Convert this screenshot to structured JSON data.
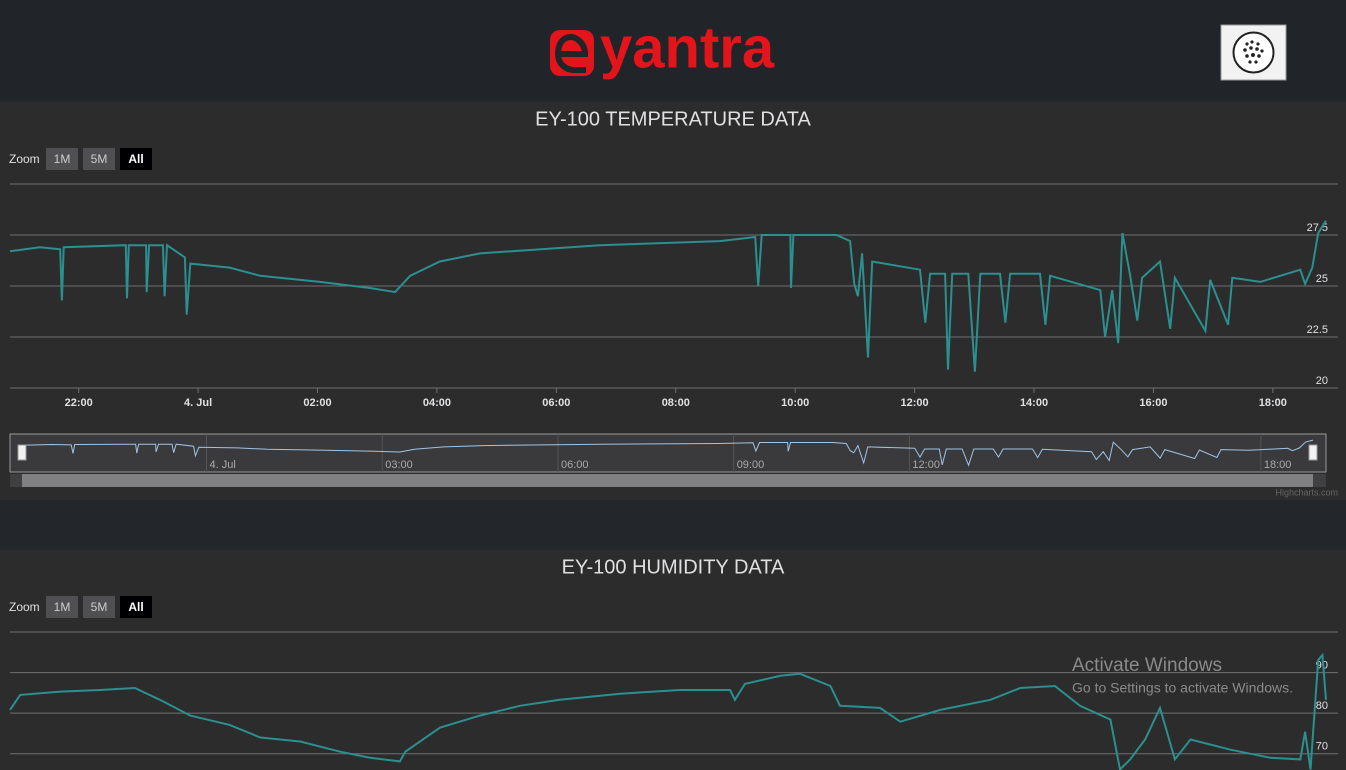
{
  "header": {
    "logo_text": "yantra"
  },
  "chart_data": [
    {
      "type": "line",
      "title": "EY-100 TEMPERATURE DATA",
      "range_selector": {
        "label": "Zoom",
        "buttons": [
          "1M",
          "5M",
          "All"
        ],
        "selected": 2
      },
      "series": [
        {
          "color": "#2b908f",
          "x": [
            20.85,
            21.35,
            21.69,
            21.72,
            21.75,
            22.79,
            22.81,
            22.84,
            23.13,
            23.14,
            23.18,
            23.41,
            23.44,
            23.48,
            23.78,
            23.81,
            23.87,
            24.53,
            25.04,
            26.04,
            26.88,
            27.3,
            27.55,
            28.05,
            28.72,
            30.73,
            32.74,
            33.33,
            33.38,
            33.44,
            33.92,
            33.93,
            33.97,
            34.69,
            34.92,
            34.99,
            35.05,
            35.12,
            35.22,
            35.29,
            36.09,
            36.18,
            36.26,
            36.51,
            36.56,
            36.63,
            36.9,
            37.01,
            37.1,
            37.43,
            37.52,
            37.6,
            38.1,
            38.19,
            38.27,
            39.11,
            39.19,
            39.31,
            39.41,
            39.48,
            39.61,
            39.73,
            39.81,
            40.11,
            40.28,
            40.36,
            40.87,
            40.95,
            41.25,
            41.32,
            41.79,
            42.46,
            42.54,
            42.66,
            42.76,
            42.89
          ],
          "values": [
            26.7,
            26.9,
            26.8,
            24.3,
            26.9,
            27.0,
            24.4,
            27.0,
            27.0,
            24.7,
            27.0,
            27.0,
            24.5,
            27.0,
            26.4,
            23.6,
            26.1,
            25.9,
            25.5,
            25.2,
            24.9,
            24.7,
            25.5,
            26.2,
            26.6,
            27.0,
            27.2,
            27.4,
            25.0,
            27.5,
            27.5,
            24.9,
            27.5,
            27.5,
            27.2,
            25.1,
            24.5,
            26.6,
            21.5,
            26.2,
            25.8,
            23.2,
            25.6,
            25.6,
            20.9,
            25.6,
            25.6,
            20.8,
            25.6,
            25.6,
            23.2,
            25.6,
            25.6,
            23.1,
            25.5,
            24.8,
            22.5,
            24.8,
            22.2,
            27.6,
            25.5,
            23.3,
            25.4,
            26.2,
            22.9,
            25.4,
            22.8,
            25.3,
            23.1,
            25.4,
            25.2,
            25.8,
            25.1,
            25.9,
            27.6,
            28.2
          ]
        }
      ],
      "xlim": [
        20.85,
        42.89
      ],
      "xticks": [
        {
          "value": 22,
          "label": "22:00"
        },
        {
          "value": 24,
          "label": "4. Jul"
        },
        {
          "value": 26,
          "label": "02:00"
        },
        {
          "value": 28,
          "label": "04:00"
        },
        {
          "value": 30,
          "label": "06:00"
        },
        {
          "value": 32,
          "label": "08:00"
        },
        {
          "value": 34,
          "label": "10:00"
        },
        {
          "value": 36,
          "label": "12:00"
        },
        {
          "value": 38,
          "label": "14:00"
        },
        {
          "value": 40,
          "label": "16:00"
        },
        {
          "value": 42,
          "label": "18:00"
        }
      ],
      "ylim": [
        20,
        30
      ],
      "yticks": [
        20,
        22.5,
        25,
        27.5
      ],
      "grid": true,
      "navigator_xticks": [
        {
          "value": 24,
          "label": "4. Jul"
        },
        {
          "value": 27,
          "label": "03:00"
        },
        {
          "value": 30,
          "label": "06:00"
        },
        {
          "value": 33,
          "label": "09:00"
        },
        {
          "value": 36,
          "label": "12:00"
        },
        {
          "value": 42,
          "label": "18:00"
        }
      ],
      "credits": "Highcharts.com"
    },
    {
      "type": "line",
      "title": "EY-100 HUMIDITY DATA",
      "range_selector": {
        "label": "Zoom",
        "buttons": [
          "1M",
          "5M",
          "All"
        ],
        "selected": 2
      },
      "series": [
        {
          "color": "#2b908f",
          "x": [
            20.85,
            21.02,
            21.69,
            22.36,
            22.94,
            23.36,
            23.87,
            24.53,
            25.04,
            25.71,
            26.38,
            26.88,
            27.38,
            27.47,
            28.05,
            28.72,
            29.39,
            30.06,
            31.07,
            32.07,
            32.91,
            32.99,
            33.16,
            33.75,
            34.08,
            34.59,
            34.75,
            35.42,
            35.76,
            36.43,
            37.27,
            37.77,
            38.35,
            38.77,
            39.28,
            39.44,
            39.61,
            39.86,
            40.11,
            40.36,
            40.62,
            41.29,
            41.96,
            42.46,
            42.54,
            42.63,
            42.76,
            42.83,
            42.89
          ],
          "values": [
            80.8,
            84.5,
            85.3,
            85.7,
            86.2,
            83.3,
            79.4,
            77.1,
            74.0,
            73.0,
            70.5,
            69.0,
            68.1,
            70.5,
            76.4,
            79.4,
            81.8,
            83.3,
            84.8,
            85.7,
            85.7,
            83.3,
            87.2,
            89.2,
            89.7,
            86.7,
            81.8,
            81.3,
            77.9,
            80.8,
            83.3,
            86.2,
            86.7,
            81.8,
            78.4,
            66.1,
            68.6,
            73.5,
            81.3,
            68.6,
            73.5,
            71.0,
            69.0,
            68.6,
            75.4,
            66.1,
            93.1,
            94.3,
            83.3
          ]
        }
      ],
      "xlim": [
        20.85,
        42.89
      ],
      "ylim": [
        65,
        100
      ],
      "yticks": [
        70,
        80,
        90
      ],
      "grid": true
    }
  ],
  "watermark": {
    "title": "Activate Windows",
    "text": "Go to Settings to activate Windows."
  }
}
